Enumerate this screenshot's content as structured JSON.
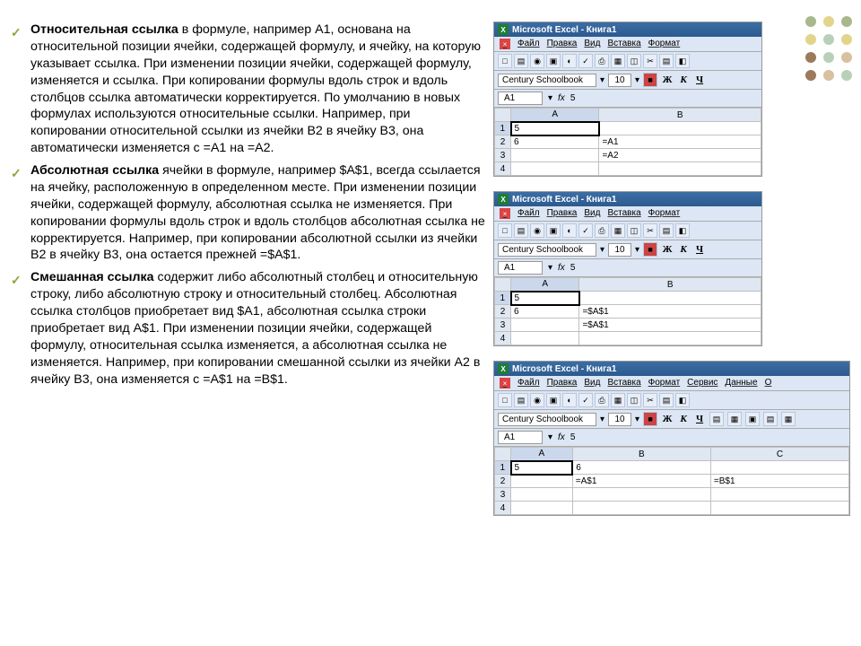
{
  "dots": [
    "#a8b88c",
    "#e2d48b",
    "#a8b88c",
    "#e2d48b",
    "#b8d0b8",
    "#e2d48b",
    "#9c7a5c",
    "#b8d0b8",
    "#d8c0a0",
    "#9c7a5c",
    "#d8c0a0",
    "#b8d0b8"
  ],
  "para1": {
    "bold": "Относительная ссылка",
    "rest": " в формуле, например A1, основана на относительной позиции ячейки, содержащей формулу, и ячейку, на которую указывает ссылка. При изменении позиции ячейки, содержащей формулу, изменяется и ссылка. При копировании формулы вдоль строк и вдоль столбцов ссылка автоматически корректируется. По умолчанию в новых формулах используются относительные ссылки. Например, при копировании относительной ссылки из ячейки B2 в ячейку B3, она автоматически изменяется с =A1 на =A2."
  },
  "para2": {
    "bold": "Абсолютная ссылка",
    "rest": "  ячейки в формуле, например $A$1, всегда ссылается на ячейку, расположенную в определенном месте. При изменении позиции ячейки, содержащей формулу, абсолютная ссылка не изменяется. При копировании формулы вдоль строк и вдоль столбцов абсолютная ссылка не корректируется. Например, при копировании абсолютной ссылки из ячейки B2 в ячейку B3, она остается прежней =$A$1."
  },
  "para3": {
    "bold": " Смешанная ссылка",
    "rest": " содержит либо абсолютный столбец и относительную строку, либо абсолютную строку и относительный столбец. Абсолютная ссылка столбцов приобретает вид $A1, абсолютная ссылка строки приобретает вид A$1. При изменении позиции ячейки, содержащей формулу, относительная ссылка изменяется, а абсолютная ссылка не изменяется. Например, при копировании смешанной ссылки из ячейки A2 в ячейку B3, она изменяется с =A$1 на =B$1."
  },
  "excel": {
    "title": "Microsoft Excel - Книга1",
    "menu": [
      "Файл",
      "Правка",
      "Вид",
      "Вставка",
      "Формат"
    ],
    "menu3": [
      "Файл",
      "Правка",
      "Вид",
      "Вставка",
      "Формат",
      "Сервис",
      "Данные",
      "О"
    ],
    "font": "Century Schoolbook",
    "size": "10",
    "bold_b": "Ж",
    "italic_k": "К",
    "under_ch": "Ч",
    "cellref": "A1",
    "fx": "fx",
    "fval": "5"
  },
  "grid1": {
    "cols": [
      "",
      "A",
      "B"
    ],
    "rows": [
      [
        "1",
        "5",
        ""
      ],
      [
        "2",
        "6",
        "=A1"
      ],
      [
        "3",
        "",
        "=A2"
      ],
      [
        "4",
        "",
        ""
      ]
    ]
  },
  "grid2": {
    "cols": [
      "",
      "A",
      "B"
    ],
    "rows": [
      [
        "1",
        "5",
        ""
      ],
      [
        "2",
        "6",
        "=$A$1"
      ],
      [
        "3",
        "",
        "=$A$1"
      ],
      [
        "4",
        "",
        ""
      ]
    ]
  },
  "grid3": {
    "cols": [
      "",
      "A",
      "B",
      "C"
    ],
    "rows": [
      [
        "1",
        "5",
        "6",
        ""
      ],
      [
        "2",
        "",
        "=A$1",
        "=B$1"
      ],
      [
        "3",
        "",
        "",
        ""
      ],
      [
        "4",
        "",
        "",
        ""
      ]
    ]
  }
}
